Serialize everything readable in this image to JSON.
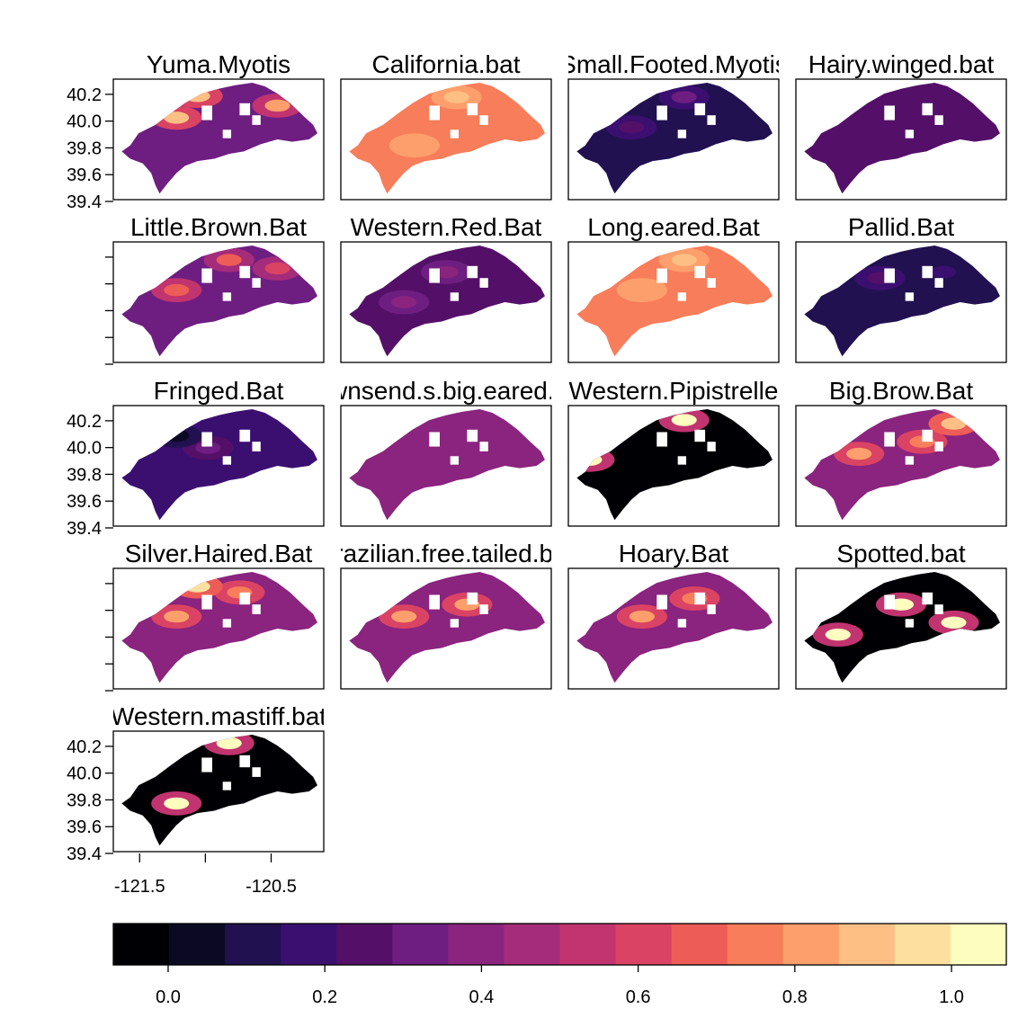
{
  "chart_data": {
    "type": "heatmap",
    "description_free": true,
    "panels": [
      {
        "title": "Yuma.Myotis",
        "base": 0.3,
        "high_patches": [
          [
            0.4,
            0.14,
            0.9
          ],
          [
            0.3,
            0.32,
            0.9
          ],
          [
            0.78,
            0.22,
            0.8
          ]
        ]
      },
      {
        "title": "California.bat",
        "base": 0.78,
        "high_patches": [
          [
            0.55,
            0.15,
            0.92
          ],
          [
            0.35,
            0.55,
            0.85
          ]
        ]
      },
      {
        "title": "Small.Footed.Myotis",
        "base": 0.08,
        "high_patches": [
          [
            0.55,
            0.15,
            0.3
          ],
          [
            0.3,
            0.4,
            0.25
          ]
        ]
      },
      {
        "title": "Hairy.winged.bat",
        "base": 0.24,
        "high_patches": []
      },
      {
        "title": "Little.Brown.Bat",
        "base": 0.33,
        "high_patches": [
          [
            0.3,
            0.4,
            0.7
          ],
          [
            0.55,
            0.15,
            0.65
          ],
          [
            0.78,
            0.22,
            0.6
          ]
        ]
      },
      {
        "title": "Western.Red.Bat",
        "base": 0.28,
        "high_patches": [
          [
            0.5,
            0.25,
            0.4
          ],
          [
            0.3,
            0.5,
            0.38
          ]
        ]
      },
      {
        "title": "Long.eared.Bat",
        "base": 0.75,
        "high_patches": [
          [
            0.55,
            0.15,
            0.92
          ],
          [
            0.35,
            0.4,
            0.85
          ]
        ]
      },
      {
        "title": "Pallid.Bat",
        "base": 0.08,
        "high_patches": [
          [
            0.4,
            0.3,
            0.22
          ],
          [
            0.7,
            0.25,
            0.2
          ]
        ]
      },
      {
        "title": "Fringed.Bat",
        "base": 0.2,
        "high_patches": [
          [
            0.45,
            0.35,
            0.35
          ],
          [
            0.3,
            0.25,
            0.05
          ]
        ]
      },
      {
        "title": "Townsend.s.big.eared.bat",
        "base": 0.36,
        "high_patches": []
      },
      {
        "title": "Western.Pipistrelle",
        "base": 0.0,
        "high_patches": [
          [
            0.1,
            0.45,
            1.0
          ],
          [
            0.55,
            0.12,
            1.0
          ]
        ]
      },
      {
        "title": "Big.Brow.Bat",
        "base": 0.42,
        "high_patches": [
          [
            0.3,
            0.4,
            0.85
          ],
          [
            0.6,
            0.3,
            0.75
          ],
          [
            0.75,
            0.15,
            0.9
          ]
        ]
      },
      {
        "title": "Silver.Haired.Bat",
        "base": 0.4,
        "high_patches": [
          [
            0.3,
            0.4,
            0.8
          ],
          [
            0.6,
            0.2,
            0.75
          ],
          [
            0.4,
            0.15,
            0.95
          ]
        ]
      },
      {
        "title": "Brazilian.free.tailed.bat",
        "base": 0.4,
        "high_patches": [
          [
            0.3,
            0.4,
            0.85
          ],
          [
            0.6,
            0.3,
            0.8
          ]
        ]
      },
      {
        "title": "Hoary.Bat",
        "base": 0.4,
        "high_patches": [
          [
            0.35,
            0.4,
            0.8
          ],
          [
            0.6,
            0.25,
            0.78
          ]
        ]
      },
      {
        "title": "Spotted.bat",
        "base": 0.0,
        "high_patches": [
          [
            0.2,
            0.55,
            1.0
          ],
          [
            0.1,
            0.2,
            1.0
          ],
          [
            0.5,
            0.3,
            1.0
          ],
          [
            0.75,
            0.45,
            1.0
          ]
        ]
      },
      {
        "title": "Western.mastiff.bat",
        "base": 0.0,
        "high_patches": [
          [
            0.1,
            0.15,
            1.0
          ],
          [
            0.55,
            0.1,
            1.0
          ],
          [
            0.3,
            0.6,
            1.0
          ]
        ]
      }
    ],
    "y_ticks": [
      "40.2",
      "40.0",
      "39.8",
      "39.6",
      "39.4"
    ],
    "y_range": [
      39.4,
      40.3
    ],
    "x_ticks": [
      "-121.5",
      "-120.5"
    ],
    "x_range": [
      -121.7,
      -120.1
    ],
    "colorbar": {
      "ticks": [
        "0.0",
        "0.2",
        "0.4",
        "0.6",
        "0.8",
        "1.0"
      ],
      "range": [
        -0.07,
        1.07
      ],
      "colors": [
        "#000004",
        "#0b0924",
        "#221150",
        "#3b0f70",
        "#541068",
        "#6e1e81",
        "#8a247e",
        "#a52c7a",
        "#c1346f",
        "#da4363",
        "#ed5c56",
        "#f87d5a",
        "#fd9f6c",
        "#febf84",
        "#fde0a0",
        "#fcfdbf"
      ]
    }
  }
}
